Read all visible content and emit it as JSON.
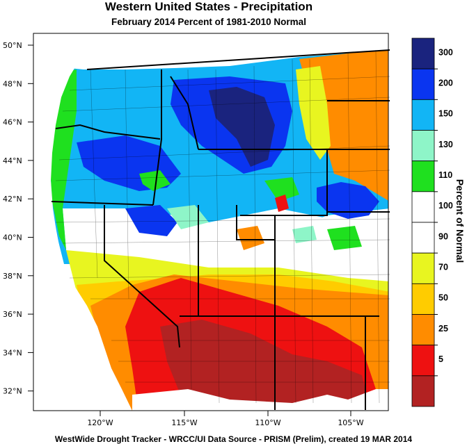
{
  "title": "Western United States - Precipitation",
  "subtitle": "February 2014  Percent of 1981-2010 Normal",
  "footer": "WestWide Drought Tracker - WRCC/UI  Data Source - PRISM (Prelim), created 19 MAR 2014",
  "colorbar": {
    "title": "Percent of Normal",
    "bins": [
      {
        "label": "300",
        "color": "#1a237e"
      },
      {
        "label": "200",
        "color": "#0a35f0"
      },
      {
        "label": "150",
        "color": "#12b5f5"
      },
      {
        "label": "130",
        "color": "#8ef5c8"
      },
      {
        "label": "110",
        "color": "#1fe01f"
      },
      {
        "label": "100",
        "color": "#ffffff"
      },
      {
        "label": "90",
        "color": "#ffffff"
      },
      {
        "label": "70",
        "color": "#e8f520"
      },
      {
        "label": "50",
        "color": "#ffcc00"
      },
      {
        "label": "25",
        "color": "#ff8c00"
      },
      {
        "label": "5",
        "color": "#ee1111"
      },
      {
        "label": "",
        "color": "#b22222"
      }
    ]
  },
  "latitude_labels": [
    "50°N",
    "48°N",
    "46°N",
    "44°N",
    "42°N",
    "40°N",
    "38°N",
    "36°N",
    "34°N",
    "32°N"
  ],
  "longitude_labels": [
    "120°W",
    "115°W",
    "110°W",
    "105°W"
  ],
  "map_colors": {
    "ocean": "#ffffff",
    "dark_blue": "#1a237e",
    "blue": "#0a35f0",
    "light_blue": "#12b5f5",
    "aqua": "#8ef5c8",
    "green": "#1fe01f",
    "white": "#ffffff",
    "yellow": "#e8f520",
    "gold": "#ffcc00",
    "orange": "#ff8c00",
    "red": "#ee1111",
    "dark_red": "#b22222",
    "border": "#000000"
  }
}
